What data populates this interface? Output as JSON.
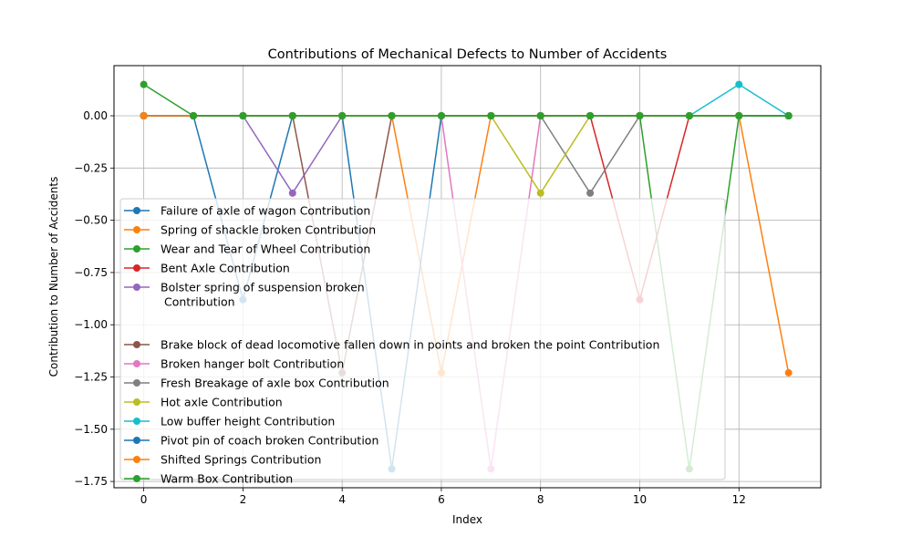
{
  "chart_data": {
    "type": "line",
    "title": "Contributions of Mechanical Defects to Number of Accidents",
    "xlabel": "Index",
    "ylabel": "Contribution to Number of Accidents",
    "x": [
      0,
      1,
      2,
      3,
      4,
      5,
      6,
      7,
      8,
      9,
      10,
      11,
      12,
      13
    ],
    "xlim": [
      -0.6,
      13.65
    ],
    "ylim": [
      -1.78,
      0.24
    ],
    "x_ticks": [
      0,
      2,
      4,
      6,
      8,
      10,
      12
    ],
    "x_tick_labels": [
      "0",
      "2",
      "4",
      "6",
      "8",
      "10",
      "12"
    ],
    "y_ticks": [
      0,
      -0.25,
      -0.5,
      -0.75,
      -1.0,
      -1.25,
      -1.5,
      -1.75
    ],
    "y_tick_labels": [
      "0.00",
      "−0.25",
      "−0.50",
      "−0.75",
      "−1.00",
      "−1.25",
      "−1.50",
      "−1.75"
    ],
    "grid": true,
    "legend_position": "lower-left",
    "series": [
      {
        "name": "  Failure of axle  of wagon Contribution",
        "color": "#1f77b4",
        "values": [
          0,
          0,
          -0.88,
          0,
          0,
          0,
          0,
          0,
          0,
          0,
          0,
          0,
          0,
          0
        ]
      },
      {
        "name": "  Spring of shackle  broken Contribution",
        "color": "#ff7f0e",
        "values": [
          0,
          0,
          0,
          0,
          0,
          0,
          -1.23,
          0,
          0,
          0,
          0,
          0,
          0,
          0
        ]
      },
      {
        "name": " Wear and Tear of Wheel Contribution",
        "color": "#2ca02c",
        "values": [
          0,
          0,
          0,
          0,
          0,
          0,
          0,
          0,
          0,
          0,
          0,
          -1.69,
          0,
          0
        ]
      },
      {
        "name": "Bent Axle Contribution",
        "color": "#d62728",
        "values": [
          0,
          0,
          0,
          0,
          0,
          0,
          0,
          0,
          0,
          0,
          -0.88,
          0,
          0,
          0
        ]
      },
      {
        "name": "Bolster spring of suspension broken\n\n Contribution",
        "color": "#9467bd",
        "values": [
          0,
          0,
          0,
          -0.37,
          0,
          0,
          0,
          0,
          0,
          0,
          0,
          0,
          0,
          0
        ]
      },
      {
        "name": "Brake block of dead locomotive  fallen down in points and broken the point Contribution",
        "color": "#8c564b",
        "values": [
          0,
          0,
          0,
          0,
          -1.23,
          0,
          0,
          0,
          0,
          0,
          0,
          0,
          0,
          0
        ]
      },
      {
        "name": "Broken hanger bolt   Contribution",
        "color": "#e377c2",
        "values": [
          0,
          0,
          0,
          0,
          0,
          0,
          0,
          -1.69,
          0,
          0,
          0,
          0,
          0,
          0
        ]
      },
      {
        "name": "Fresh Breakage of axle box  Contribution",
        "color": "#7f7f7f",
        "values": [
          0,
          0,
          0,
          0,
          0,
          0,
          0,
          0,
          0,
          -0.37,
          0,
          0,
          0,
          0
        ]
      },
      {
        "name": "Hot axle Contribution",
        "color": "#bcbd22",
        "values": [
          0,
          0,
          0,
          0,
          0,
          0,
          0,
          0,
          -0.37,
          0,
          0,
          0,
          0,
          0
        ]
      },
      {
        "name": "Low buffer height  Contribution",
        "color": "#17becf",
        "values": [
          0,
          0,
          0,
          0,
          0,
          0,
          0,
          0,
          0,
          0,
          0,
          0,
          0.15,
          0
        ]
      },
      {
        "name": "Pivot pin of coach broken Contribution",
        "color": "#1f77b4",
        "values": [
          0,
          0,
          0,
          0,
          0,
          -1.69,
          0,
          0,
          0,
          0,
          0,
          0,
          0,
          0
        ]
      },
      {
        "name": "Shifted Springs Contribution",
        "color": "#ff7f0e",
        "values": [
          0,
          0,
          0,
          0,
          0,
          0,
          0,
          0,
          0,
          0,
          0,
          0,
          0,
          -1.23
        ]
      },
      {
        "name": "Warm Box Contribution",
        "color": "#2ca02c",
        "values": [
          0.15,
          0,
          0,
          0,
          0,
          0,
          0,
          0,
          0,
          0,
          0,
          0,
          0,
          0
        ]
      }
    ]
  }
}
